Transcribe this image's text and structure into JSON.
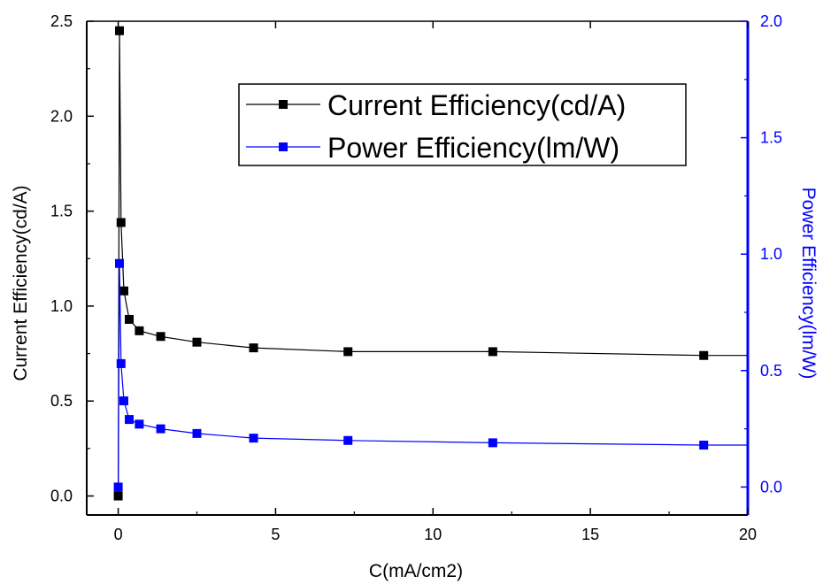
{
  "chart_data": {
    "type": "scatter",
    "xlabel": "C(mA/cm2)",
    "ylabel_left": "Current Efficiency(cd/A)",
    "ylabel_right": "Power Efficiency(lm/W)",
    "xlim": [
      -1,
      20
    ],
    "ylim_left": [
      -0.1,
      2.5
    ],
    "ylim_right": [
      -0.12,
      2.0
    ],
    "x_ticks": [
      "0",
      "5",
      "10",
      "15",
      "20"
    ],
    "y_left_ticks": [
      "0.0",
      "0.5",
      "1.0",
      "1.5",
      "2.0",
      "2.5"
    ],
    "y_right_ticks": [
      "0.0",
      "0.5",
      "1.0",
      "1.5",
      "2.0"
    ],
    "legend_position": "top-right",
    "series": [
      {
        "name": "Current Efficiency(cd/A)",
        "axis": "left",
        "color": "#000000",
        "x": [
          0.0,
          0.04,
          0.09,
          0.18,
          0.35,
          0.67,
          1.35,
          2.5,
          4.3,
          7.3,
          11.9,
          18.6
        ],
        "y": [
          0.0,
          2.45,
          1.44,
          1.08,
          0.93,
          0.87,
          0.84,
          0.81,
          0.78,
          0.76,
          0.76,
          0.74
        ]
      },
      {
        "name": "Power Efficiency(lm/W)",
        "axis": "right",
        "color": "#0000ff",
        "x": [
          0.0,
          0.04,
          0.09,
          0.18,
          0.35,
          0.67,
          1.35,
          2.5,
          4.3,
          7.3,
          11.9,
          18.6
        ],
        "y": [
          0.0,
          0.96,
          0.53,
          0.37,
          0.29,
          0.27,
          0.25,
          0.23,
          0.21,
          0.2,
          0.19,
          0.18
        ]
      }
    ]
  }
}
